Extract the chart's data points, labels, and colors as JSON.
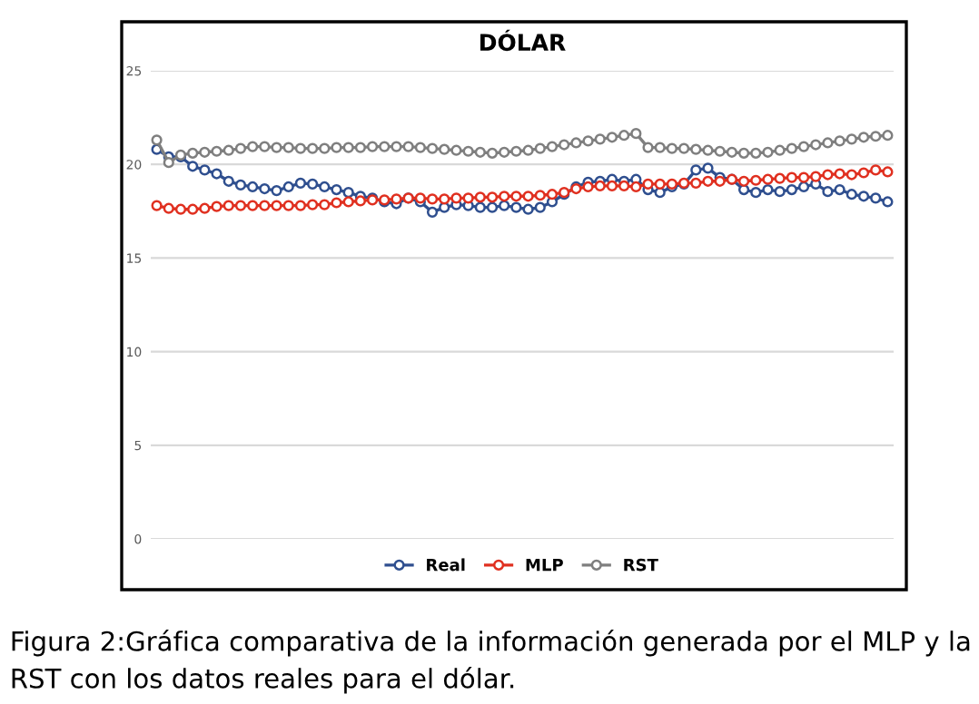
{
  "chart_data": {
    "type": "line",
    "title": "DÓLAR",
    "categories": [
      null,
      null,
      null,
      null,
      null,
      null,
      null,
      null,
      null,
      null,
      null,
      null,
      null,
      null,
      null,
      null,
      null,
      null,
      null,
      null,
      null,
      null,
      null,
      null,
      null,
      null,
      null,
      null,
      null,
      null,
      null,
      null,
      null,
      null,
      null,
      null,
      null,
      null,
      null,
      null,
      null,
      null,
      null,
      null,
      null,
      null,
      null,
      null,
      null,
      null,
      null,
      null,
      null,
      null,
      null,
      null,
      null,
      null,
      null,
      null,
      null,
      null
    ],
    "series": [
      {
        "name": "Real",
        "color": "#2f4f8f",
        "values": [
          20.8,
          20.4,
          20.4,
          19.9,
          19.7,
          19.5,
          19.1,
          18.9,
          18.8,
          18.7,
          18.6,
          18.8,
          19.0,
          18.95,
          18.8,
          18.65,
          18.5,
          18.3,
          18.2,
          18.0,
          17.9,
          18.2,
          18.0,
          17.45,
          17.7,
          17.85,
          17.8,
          17.7,
          17.7,
          17.8,
          17.7,
          17.6,
          17.7,
          18.0,
          18.4,
          18.8,
          19.05,
          19.1,
          19.2,
          19.1,
          19.2,
          18.65,
          18.5,
          18.8,
          18.95,
          19.7,
          19.8,
          19.3,
          19.2,
          18.65,
          18.5,
          18.65,
          18.55,
          18.65,
          18.8,
          18.95,
          18.55,
          18.65,
          18.4,
          18.3,
          18.2,
          18.0
        ]
      },
      {
        "name": "MLP",
        "color": "#e03020",
        "values": [
          17.8,
          17.65,
          17.6,
          17.6,
          17.65,
          17.75,
          17.8,
          17.8,
          17.8,
          17.8,
          17.8,
          17.8,
          17.8,
          17.85,
          17.85,
          17.95,
          18.0,
          18.05,
          18.1,
          18.1,
          18.15,
          18.2,
          18.2,
          18.15,
          18.15,
          18.2,
          18.2,
          18.25,
          18.25,
          18.3,
          18.3,
          18.3,
          18.35,
          18.4,
          18.5,
          18.7,
          18.8,
          18.85,
          18.85,
          18.85,
          18.8,
          18.95,
          18.95,
          18.95,
          19.0,
          19.0,
          19.1,
          19.1,
          19.2,
          19.1,
          19.15,
          19.2,
          19.25,
          19.3,
          19.3,
          19.35,
          19.45,
          19.5,
          19.45,
          19.55,
          19.7,
          19.6
        ]
      },
      {
        "name": "RST",
        "color": "#7f7f7f",
        "values": [
          21.3,
          20.1,
          20.5,
          20.6,
          20.65,
          20.7,
          20.75,
          20.85,
          20.95,
          20.95,
          20.9,
          20.9,
          20.85,
          20.85,
          20.85,
          20.9,
          20.9,
          20.9,
          20.95,
          20.95,
          20.95,
          20.95,
          20.9,
          20.85,
          20.8,
          20.75,
          20.7,
          20.65,
          20.6,
          20.65,
          20.7,
          20.75,
          20.85,
          20.95,
          21.05,
          21.15,
          21.25,
          21.35,
          21.45,
          21.55,
          21.65,
          20.9,
          20.9,
          20.85,
          20.85,
          20.8,
          20.75,
          20.7,
          20.65,
          20.6,
          20.6,
          20.65,
          20.75,
          20.85,
          20.95,
          21.05,
          21.15,
          21.25,
          21.35,
          21.45,
          21.5,
          21.55
        ]
      }
    ],
    "ylim": [
      0,
      25
    ],
    "yticks": [
      0,
      5,
      10,
      15,
      20,
      25
    ],
    "grid": "y",
    "legend": "bottom",
    "marker": "circle",
    "line_style": "solid",
    "annotations": [
      "Figura 2:Gráfica comparativa de la información generada por el MLP y la RST con los datos reales para el dólar."
    ]
  }
}
